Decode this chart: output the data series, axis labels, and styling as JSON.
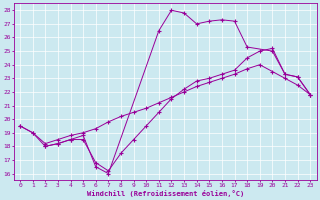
{
  "xlabel": "Windchill (Refroidissement éolien,°C)",
  "xlim": [
    -0.5,
    23.5
  ],
  "ylim": [
    15.5,
    28.5
  ],
  "xticks": [
    0,
    1,
    2,
    3,
    4,
    5,
    6,
    7,
    8,
    9,
    10,
    11,
    12,
    13,
    14,
    15,
    16,
    17,
    18,
    19,
    20,
    21,
    22,
    23
  ],
  "yticks": [
    16,
    17,
    18,
    19,
    20,
    21,
    22,
    23,
    24,
    25,
    26,
    27,
    28
  ],
  "bg_color": "#cce9f0",
  "line_color": "#990099",
  "grid_color": "#ffffff",
  "line1_x": [
    0,
    1,
    2,
    3,
    4,
    5,
    6,
    7,
    11,
    12,
    13,
    14,
    15,
    16,
    17,
    18,
    20,
    21,
    22,
    23
  ],
  "line1_y": [
    19.5,
    19.0,
    18.0,
    18.2,
    18.5,
    18.8,
    16.5,
    16.0,
    26.5,
    28.0,
    27.8,
    27.0,
    27.2,
    27.3,
    27.2,
    25.3,
    25.0,
    23.3,
    23.1,
    21.8
  ],
  "line2_x": [
    2,
    3,
    4,
    5,
    6,
    7,
    8,
    9,
    10,
    11,
    12,
    13,
    14,
    15,
    16,
    17,
    18,
    19,
    20,
    21,
    22,
    23
  ],
  "line2_y": [
    18.0,
    18.2,
    18.5,
    18.5,
    16.8,
    16.2,
    17.5,
    18.5,
    19.5,
    20.5,
    21.5,
    22.2,
    22.8,
    23.0,
    23.3,
    23.6,
    24.5,
    25.0,
    25.2,
    23.3,
    23.1,
    21.8
  ],
  "line3_x": [
    0,
    1,
    2,
    3,
    4,
    5,
    6,
    7,
    8,
    9,
    10,
    11,
    12,
    13,
    14,
    15,
    16,
    17,
    18,
    19,
    20,
    21,
    22,
    23
  ],
  "line3_y": [
    19.5,
    19.0,
    18.2,
    18.5,
    18.8,
    19.0,
    19.3,
    19.8,
    20.2,
    20.5,
    20.8,
    21.2,
    21.6,
    22.0,
    22.4,
    22.7,
    23.0,
    23.3,
    23.7,
    24.0,
    23.5,
    23.0,
    22.5,
    21.8
  ]
}
